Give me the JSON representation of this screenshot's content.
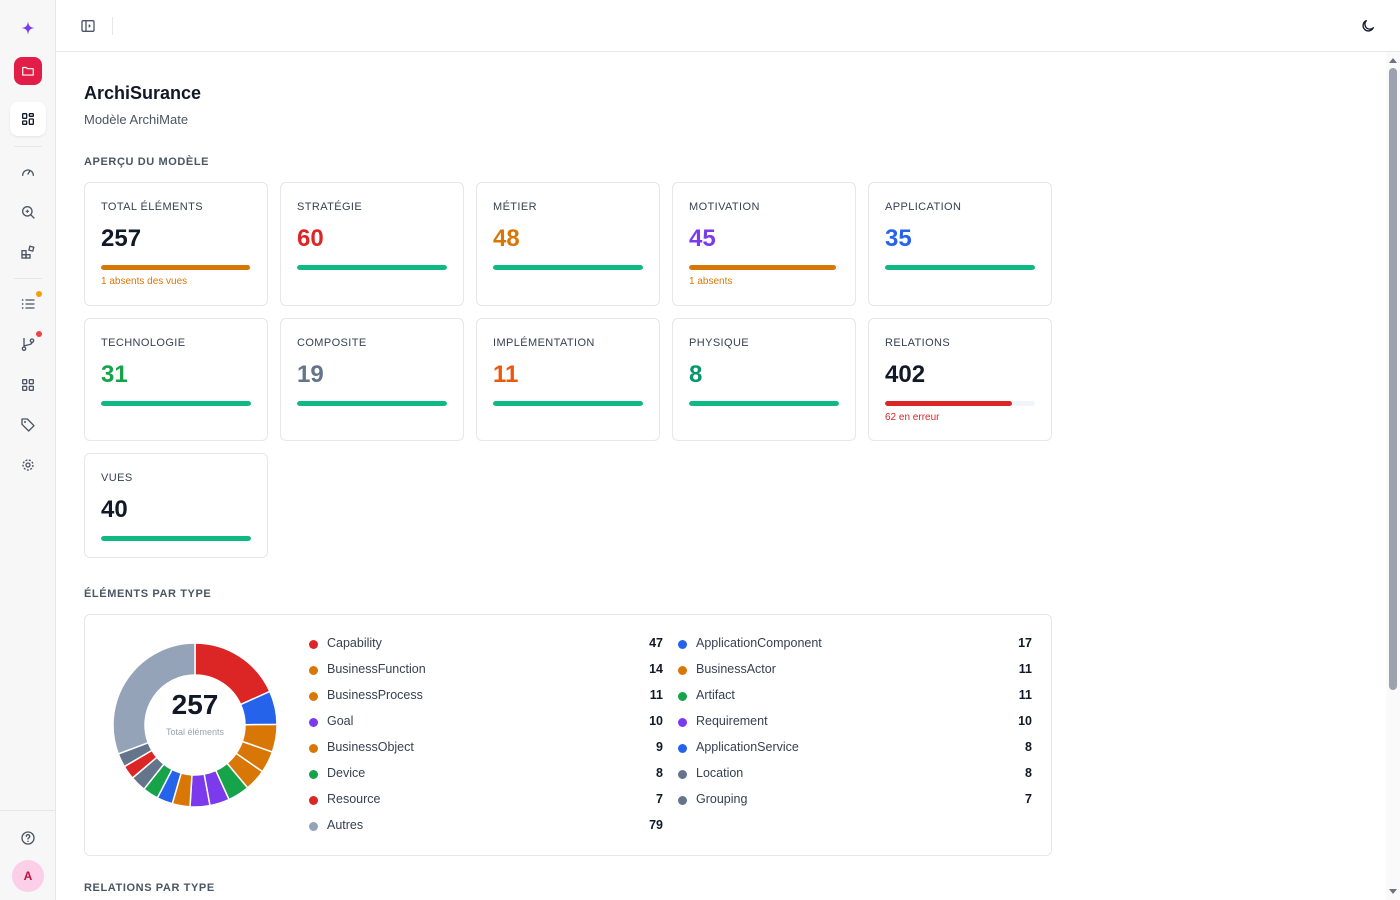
{
  "header": {
    "title": "ArchiSurance",
    "subtitle": "Modèle ArchiMate"
  },
  "sidebar": {
    "avatar_initial": "A",
    "icons": [
      "sparkle-icon",
      "folder-icon",
      "dashboard-icon",
      "gauge-icon",
      "search-zoom-icon",
      "blocks-icon",
      "list-icon",
      "branch-icon",
      "grid-icon",
      "tag-icon",
      "gear-icon",
      "help-icon"
    ],
    "badges": {
      "list": "#f59e0b",
      "branch": "#ef4444"
    },
    "accent": "#e11d48"
  },
  "overview": {
    "title": "APERÇU DU MODÈLE",
    "cards": [
      {
        "label": "TOTAL ÉLÉMENTS",
        "value": "257",
        "color": "#111827",
        "progress": 0.996,
        "bar_color": "#d97706",
        "note": "1 absents des vues",
        "note_color": "#d97706"
      },
      {
        "label": "STRATÉGIE",
        "value": "60",
        "color": "#dc2626",
        "progress": 1,
        "bar_color": "#10b981",
        "note": "",
        "note_color": ""
      },
      {
        "label": "MÉTIER",
        "value": "48",
        "color": "#d97706",
        "progress": 1,
        "bar_color": "#10b981",
        "note": "",
        "note_color": ""
      },
      {
        "label": "MOTIVATION",
        "value": "45",
        "color": "#7c3aed",
        "progress": 0.98,
        "bar_color": "#d97706",
        "note": "1 absents",
        "note_color": "#d97706"
      },
      {
        "label": "APPLICATION",
        "value": "35",
        "color": "#2563eb",
        "progress": 1,
        "bar_color": "#10b981",
        "note": "",
        "note_color": ""
      },
      {
        "label": "TECHNOLOGIE",
        "value": "31",
        "color": "#16a34a",
        "progress": 1,
        "bar_color": "#10b981",
        "note": "",
        "note_color": ""
      },
      {
        "label": "COMPOSITE",
        "value": "19",
        "color": "#64748b",
        "progress": 1,
        "bar_color": "#10b981",
        "note": "",
        "note_color": ""
      },
      {
        "label": "IMPLÉMENTATION",
        "value": "11",
        "color": "#ea580c",
        "progress": 1,
        "bar_color": "#10b981",
        "note": "",
        "note_color": ""
      },
      {
        "label": "PHYSIQUE",
        "value": "8",
        "color": "#059669",
        "progress": 1,
        "bar_color": "#10b981",
        "note": "",
        "note_color": ""
      },
      {
        "label": "RELATIONS",
        "value": "402",
        "color": "#111827",
        "progress": 0.846,
        "bar_color": "#dc2626",
        "note": "62 en erreur",
        "note_color": "#dc2626"
      },
      {
        "label": "VUES",
        "value": "40",
        "color": "#111827",
        "progress": 1,
        "bar_color": "#10b981",
        "note": "",
        "note_color": ""
      }
    ]
  },
  "elements_by_type": {
    "title": "ÉLÉMENTS PAR TYPE",
    "total": "257",
    "total_caption": "Total éléments",
    "legend_left": [
      {
        "name": "Capability",
        "value": "47",
        "color": "#dc2626"
      },
      {
        "name": "BusinessFunction",
        "value": "14",
        "color": "#d97706"
      },
      {
        "name": "BusinessProcess",
        "value": "11",
        "color": "#d97706"
      },
      {
        "name": "Goal",
        "value": "10",
        "color": "#7c3aed"
      },
      {
        "name": "BusinessObject",
        "value": "9",
        "color": "#d97706"
      },
      {
        "name": "Device",
        "value": "8",
        "color": "#16a34a"
      },
      {
        "name": "Resource",
        "value": "7",
        "color": "#dc2626"
      },
      {
        "name": "Autres",
        "value": "79",
        "color": "#94a3b8"
      }
    ],
    "legend_right": [
      {
        "name": "ApplicationComponent",
        "value": "17",
        "color": "#2563eb"
      },
      {
        "name": "BusinessActor",
        "value": "11",
        "color": "#d97706"
      },
      {
        "name": "Artifact",
        "value": "11",
        "color": "#16a34a"
      },
      {
        "name": "Requirement",
        "value": "10",
        "color": "#7c3aed"
      },
      {
        "name": "ApplicationService",
        "value": "8",
        "color": "#2563eb"
      },
      {
        "name": "Location",
        "value": "8",
        "color": "#64748b"
      },
      {
        "name": "Grouping",
        "value": "7",
        "color": "#64748b"
      }
    ]
  },
  "chart_data": {
    "type": "pie",
    "title": "",
    "categories": [
      "Capability",
      "ApplicationComponent",
      "BusinessFunction",
      "BusinessActor",
      "BusinessProcess",
      "Artifact",
      "Goal",
      "Requirement",
      "BusinessObject",
      "ApplicationService",
      "Device",
      "Location",
      "Resource",
      "Grouping",
      "Autres"
    ],
    "values": [
      47,
      17,
      14,
      11,
      11,
      11,
      10,
      10,
      9,
      8,
      8,
      8,
      7,
      7,
      79
    ],
    "colors": [
      "#dc2626",
      "#2563eb",
      "#d97706",
      "#d97706",
      "#d97706",
      "#16a34a",
      "#7c3aed",
      "#7c3aed",
      "#d97706",
      "#2563eb",
      "#16a34a",
      "#64748b",
      "#dc2626",
      "#64748b",
      "#94a3b8"
    ],
    "center_label": "257"
  },
  "relations_by_type": {
    "title": "RELATIONS PAR TYPE"
  }
}
